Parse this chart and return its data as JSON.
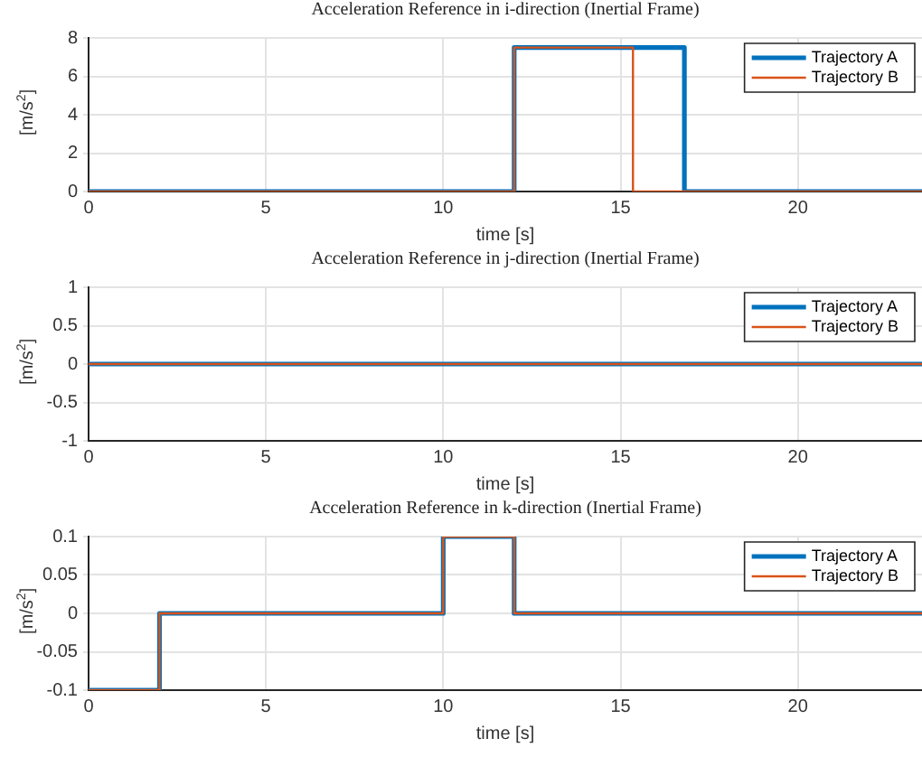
{
  "chart_data": [
    {
      "type": "line",
      "title": "Acceleration Reference in i-direction (Inertial Frame)",
      "xlabel": "time [s]",
      "ylabel": "[m/s$^{2}$]",
      "xlim": [
        0,
        23.5
      ],
      "xticks": [
        0,
        5,
        10,
        15,
        20
      ],
      "ylim": [
        0,
        8
      ],
      "yticks": [
        0,
        2,
        4,
        6,
        8
      ],
      "grid": true,
      "legend": "top right",
      "series": [
        {
          "name": "Trajectory A",
          "color": "#0072bd",
          "x": [
            0,
            12,
            12,
            16.8,
            16.8,
            23.5
          ],
          "values": [
            0,
            0,
            7.5,
            7.5,
            0,
            0
          ]
        },
        {
          "name": "Trajectory B",
          "color": "#d95319",
          "x": [
            0,
            12,
            12,
            15.35,
            15.35,
            23.5
          ],
          "values": [
            0,
            0,
            7.5,
            7.5,
            0,
            0
          ]
        }
      ]
    },
    {
      "type": "line",
      "title": "Acceleration Reference in j-direction (Inertial Frame)",
      "xlabel": "time [s]",
      "ylabel": "[m/s$^{2}$]",
      "xlim": [
        0,
        23.5
      ],
      "xticks": [
        0,
        5,
        10,
        15,
        20
      ],
      "ylim": [
        -1,
        1
      ],
      "yticks": [
        -1,
        -0.5,
        0,
        0.5,
        1
      ],
      "grid": true,
      "legend": "top right",
      "series": [
        {
          "name": "Trajectory A",
          "color": "#0072bd",
          "x": [
            0,
            23.5
          ],
          "values": [
            0,
            0
          ]
        },
        {
          "name": "Trajectory B",
          "color": "#d95319",
          "x": [
            0,
            23.5
          ],
          "values": [
            0,
            0
          ]
        }
      ]
    },
    {
      "type": "line",
      "title": "Acceleration Reference in k-direction (Inertial Frame)",
      "xlabel": "time [s]",
      "ylabel": "[m/s$^{2}$]",
      "xlim": [
        0,
        23.5
      ],
      "xticks": [
        0,
        5,
        10,
        15,
        20
      ],
      "ylim": [
        -0.1,
        0.1
      ],
      "yticks": [
        -0.1,
        -0.05,
        0,
        0.05,
        0.1
      ],
      "grid": true,
      "legend": "top right",
      "series": [
        {
          "name": "Trajectory A",
          "color": "#0072bd",
          "x": [
            0,
            2,
            2,
            10,
            10,
            12,
            12,
            23.5
          ],
          "values": [
            -0.1,
            -0.1,
            0,
            0,
            0.1,
            0.1,
            0,
            0
          ]
        },
        {
          "name": "Trajectory B",
          "color": "#d95319",
          "x": [
            0,
            2,
            2,
            10,
            10,
            12,
            12,
            23.5
          ],
          "values": [
            -0.1,
            -0.1,
            0,
            0,
            0.1,
            0.1,
            0,
            0
          ]
        }
      ]
    }
  ]
}
